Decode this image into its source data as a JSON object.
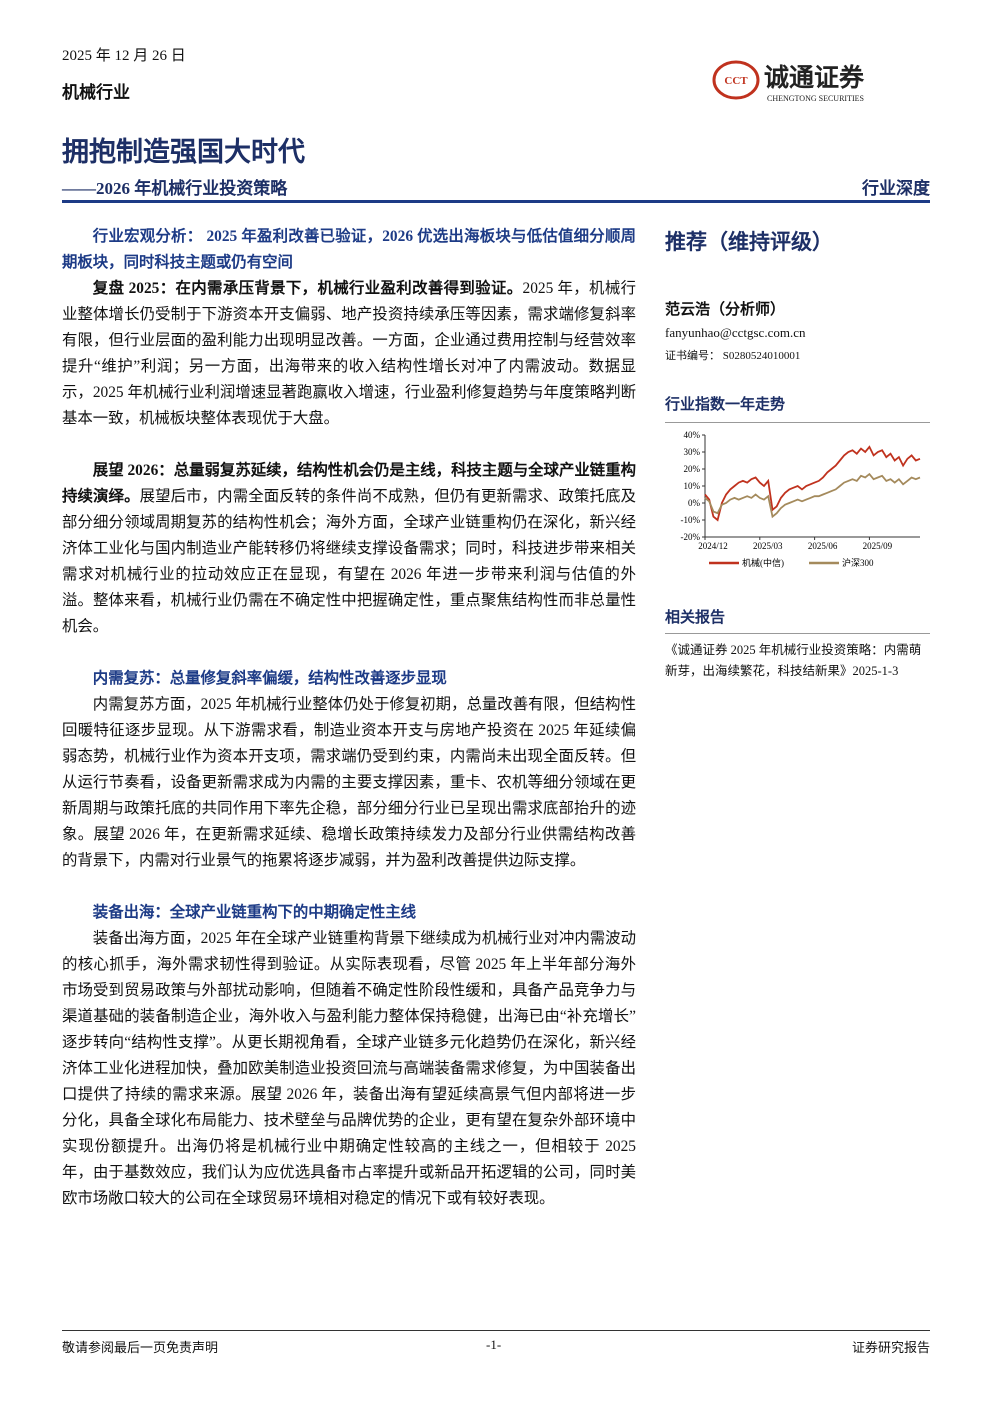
{
  "header": {
    "date": "2025 年 12 月 26 日",
    "industry": "机械行业",
    "logo_mark": "CCT",
    "logo_name": "诚通证券",
    "logo_en": "CHENGTONG SECURITIES"
  },
  "title": "拥抱制造强国大时代",
  "subtitle": "——2026 年机械行业投资策略",
  "tag": "行业深度",
  "body": [
    {
      "heading": "行业宏观分析： 2025 年盈利改善已验证，2026 优选出海板块与低估值细分顺周期板块，同时科技主题或仍有空间"
    },
    {
      "lead": "复盘 2025：在内需承压背景下，机械行业盈利改善得到验证。",
      "text": "2025 年，机械行业整体增长仍受制于下游资本开支偏弱、地产投资持续承压等因素，需求端修复斜率有限，但行业层面的盈利能力出现明显改善。一方面，企业通过费用控制与经营效率提升“维护”利润；另一方面，出海带来的收入结构性增长对冲了内需波动。数据显示，2025 年机械行业利润增速显著跑赢收入增速，行业盈利修复趋势与年度策略判断基本一致，机械板块整体表现优于大盘。"
    },
    {
      "lead": "展望 2026：总量弱复苏延续，结构性机会仍是主线，科技主题与全球产业链重构持续演绎。",
      "text": "展望后市，内需全面反转的条件尚不成熟，但仍有更新需求、政策托底及部分细分领域周期复苏的结构性机会；海外方面，全球产业链重构仍在深化，新兴经济体工业化与国内制造业产能转移仍将继续支撑设备需求；同时，科技进步带来相关需求对机械行业的拉动效应正在显现，有望在 2026 年进一步带来利润与估值的外溢。整体来看，机械行业仍需在不确定性中把握确定性，重点聚焦结构性而非总量性机会。"
    },
    {
      "heading": "内需复苏：总量修复斜率偏缓，结构性改善逐步显现"
    },
    {
      "text": "内需复苏方面，2025 年机械行业整体仍处于修复初期，总量改善有限，但结构性回暖特征逐步显现。从下游需求看，制造业资本开支与房地产投资在 2025 年延续偏弱态势，机械行业作为资本开支项，需求端仍受到约束，内需尚未出现全面反转。但从运行节奏看，设备更新需求成为内需的主要支撑因素，重卡、农机等细分领域在更新周期与政策托底的共同作用下率先企稳，部分细分行业已呈现出需求底部抬升的迹象。展望 2026 年，在更新需求延续、稳增长政策持续发力及部分行业供需结构改善的背景下，内需对行业景气的拖累将逐步减弱，并为盈利改善提供边际支撑。"
    },
    {
      "heading": "装备出海：全球产业链重构下的中期确定性主线"
    },
    {
      "text": "装备出海方面，2025 年在全球产业链重构背景下继续成为机械行业对冲内需波动的核心抓手，海外需求韧性得到验证。从实际表现看，尽管 2025 年上半年部分海外市场受到贸易政策与外部扰动影响，但随着不确定性阶段性缓和，具备产品竞争力与渠道基础的装备制造企业，海外收入与盈利能力整体保持稳健，出海已由“补充增长”逐步转向“结构性支撑”。从更长期视角看，全球产业链多元化趋势仍在深化，新兴经济体工业化进程加快，叠加欧美制造业投资回流与高端装备需求修复，为中国装备出口提供了持续的需求来源。展望 2026 年，装备出海有望延续高景气但内部将进一步分化，具备全球化布局能力、技术壁垒与品牌优势的企业，更有望在复杂外部环境中实现份额提升。出海仍将是机械行业中期确定性较高的主线之一，但相较于 2025 年，由于基数效应，我们认为应优选具备市占率提升或新品开拓逻辑的公司，同时美欧市场敞口较大的公司在全球贸易环境相对稳定的情况下或有较好表现。"
    }
  ],
  "sidebar": {
    "rating": "推荐（维持评级）",
    "analyst": "范云浩（分析师）",
    "email": "fanyunhao@cctgsc.com.cn",
    "cert": "证书编号： S0280524010001",
    "chart_title": "行业指数一年走势",
    "chart_data": {
      "type": "line",
      "xlim": [
        0,
        51
      ],
      "xticks": [
        {
          "value": 0,
          "label": "2024/12"
        },
        {
          "value": 13,
          "label": "2025/03"
        },
        {
          "value": 26,
          "label": "2025/06"
        },
        {
          "value": 39,
          "label": "2025/09"
        }
      ],
      "ylim": [
        -20,
        40
      ],
      "yticks": [
        {
          "value": -20,
          "label": "-20%"
        },
        {
          "value": -10,
          "label": "-10%"
        },
        {
          "value": 0,
          "label": "0%"
        },
        {
          "value": 10,
          "label": "10%"
        },
        {
          "value": 20,
          "label": "20%"
        },
        {
          "value": 30,
          "label": "30%"
        },
        {
          "value": 40,
          "label": "40%"
        }
      ],
      "series": [
        {
          "name": "机械(中信)",
          "color": "#c0321e",
          "values": [
            5,
            2,
            -8,
            -10,
            0,
            5,
            8,
            10,
            12,
            13,
            12,
            14,
            15,
            12,
            10,
            13,
            -4,
            -2,
            3,
            6,
            8,
            9,
            10,
            8,
            10,
            11,
            12,
            13,
            15,
            18,
            20,
            22,
            25,
            28,
            30,
            31,
            29,
            32,
            30,
            33,
            28,
            30,
            31,
            27,
            29,
            25,
            27,
            22,
            26,
            28,
            25,
            26
          ]
        },
        {
          "name": "沪深300",
          "color": "#a48a5c",
          "values": [
            3,
            1,
            -5,
            -6,
            -1,
            0,
            2,
            3,
            2,
            3,
            4,
            3,
            5,
            3,
            2,
            4,
            -8,
            -6,
            -3,
            -1,
            0,
            1,
            2,
            1,
            2,
            3,
            4,
            4,
            5,
            6,
            7,
            8,
            10,
            12,
            13,
            14,
            13,
            16,
            15,
            17,
            14,
            15,
            16,
            13,
            14,
            12,
            14,
            11,
            13,
            15,
            14,
            15
          ]
        }
      ]
    },
    "related_title": "相关报告",
    "related": "《诚通证券 2025 年机械行业投资策略：内需萌新芽，出海续繁花，科技结新果》2025-1-3"
  },
  "footer": {
    "left": "敬请参阅最后一页免责声明",
    "center": "-1-",
    "right": "证券研究报告"
  }
}
